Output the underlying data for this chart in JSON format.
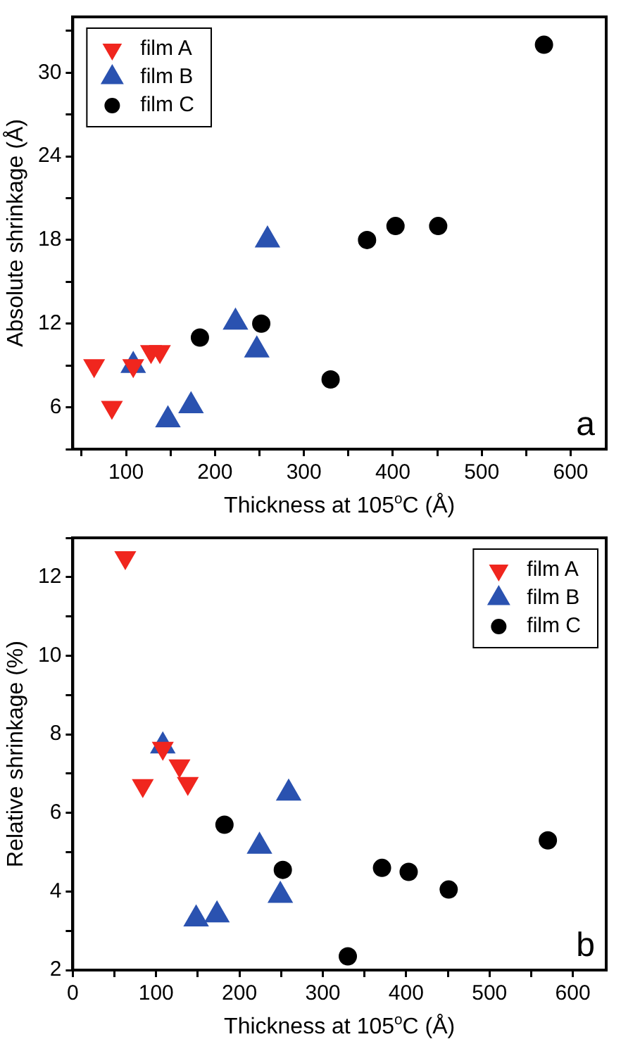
{
  "chart_data": [
    {
      "type": "scatter",
      "xlabel": "Thickness at 105$^{o}$C (Å)",
      "ylabel": "Absolute shrinkage (Å)",
      "xlim": [
        40,
        640
      ],
      "ylim": [
        3,
        34
      ],
      "xticks": [
        {
          "value": 50,
          "label": null
        },
        100,
        {
          "value": 150,
          "label": null
        },
        200,
        {
          "value": 250,
          "label": null
        },
        300,
        {
          "value": 350,
          "label": null
        },
        400,
        {
          "value": 450,
          "label": null
        },
        500,
        {
          "value": 550,
          "label": null
        },
        600
      ],
      "yticks": [
        {
          "value": 3,
          "label": null
        },
        6,
        {
          "value": 9,
          "label": null
        },
        12,
        {
          "value": 15,
          "label": null
        },
        18,
        {
          "value": 21,
          "label": null
        },
        24,
        {
          "value": 27,
          "label": null
        },
        30,
        {
          "value": 33,
          "label": null
        }
      ],
      "grid": false,
      "legend": "top left",
      "annotations": [
        "a"
      ],
      "series": [
        {
          "name": "film A",
          "color": "#f0261e",
          "marker": "triangle-down",
          "x": [
            64,
            84,
            108,
            128,
            138
          ],
          "values": [
            9,
            6,
            9,
            10,
            10
          ]
        },
        {
          "name": "film B",
          "color": "#2a52b0",
          "marker": "triangle",
          "x": [
            108,
            147,
            173,
            223,
            247,
            259
          ],
          "values": [
            9,
            5.1,
            6.1,
            12.1,
            10.1,
            18
          ]
        },
        {
          "name": "film C",
          "color": "#000000",
          "marker": "circle",
          "x": [
            183,
            252,
            330,
            371,
            403,
            451,
            570
          ],
          "values": [
            11,
            12,
            8,
            18,
            19,
            19,
            32
          ]
        }
      ]
    },
    {
      "type": "scatter",
      "xlabel": "Thickness at 105$^{o}$C (Å)",
      "ylabel": "Relative shrinkage (%)",
      "xlim": [
        0,
        640
      ],
      "ylim": [
        2,
        13
      ],
      "xticks": [
        0,
        {
          "value": 50,
          "label": null
        },
        100,
        {
          "value": 150,
          "label": null
        },
        200,
        {
          "value": 250,
          "label": null
        },
        300,
        {
          "value": 350,
          "label": null
        },
        400,
        {
          "value": 450,
          "label": null
        },
        500,
        {
          "value": 550,
          "label": null
        },
        600
      ],
      "yticks": [
        2,
        {
          "value": 3,
          "label": null
        },
        4,
        {
          "value": 5,
          "label": null
        },
        6,
        {
          "value": 7,
          "label": null
        },
        8,
        {
          "value": 9,
          "label": null
        },
        10,
        {
          "value": 11,
          "label": null
        },
        12,
        {
          "value": 13,
          "label": null
        }
      ],
      "grid": false,
      "legend": "top right",
      "annotations": [
        "b"
      ],
      "series": [
        {
          "name": "film A",
          "color": "#f0261e",
          "marker": "triangle-down",
          "x": [
            63,
            84,
            108,
            128,
            138
          ],
          "values": [
            12.5,
            6.7,
            7.65,
            7.2,
            6.75
          ]
        },
        {
          "name": "film B",
          "color": "#2a52b0",
          "marker": "triangle",
          "x": [
            108,
            148,
            173,
            224,
            249,
            259
          ],
          "values": [
            7.7,
            3.3,
            3.4,
            5.15,
            3.9,
            6.5
          ]
        },
        {
          "name": "film C",
          "color": "#000000",
          "marker": "circle",
          "x": [
            182,
            252,
            330,
            371,
            403,
            451,
            570
          ],
          "values": [
            5.7,
            4.55,
            2.35,
            4.6,
            4.5,
            4.05,
            5.3
          ]
        }
      ]
    }
  ]
}
